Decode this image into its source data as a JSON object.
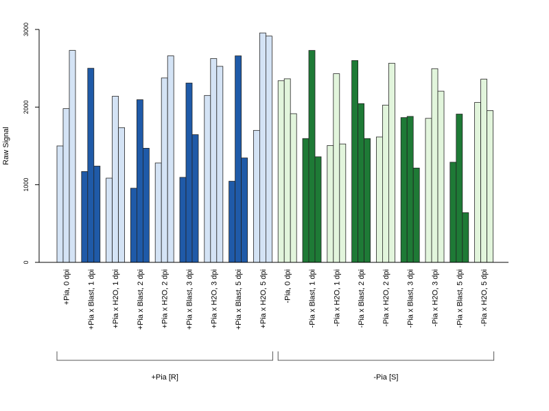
{
  "chart_data": {
    "type": "bar",
    "ylabel": "Raw Signal",
    "ylim": [
      0,
      3000
    ],
    "yticks": [
      "0",
      "1000",
      "2000",
      "3000"
    ],
    "categories": [
      "+Pia, 0 dpi",
      "+Pia x Blast, 1 dpi",
      "+Pia x H2O, 1 dpi",
      "+Pia x Blast, 2 dpi",
      "+Pia x H2O, 2 dpi",
      "+Pia x Blast, 3 dpi",
      "+Pia x H2O, 3 dpi",
      "+Pia x Blast, 5 dpi",
      "+Pia x H2O, 5 dpi",
      "-Pia, 0 dpi",
      "-Pia x Blast, 1 dpi",
      "-Pia x H2O, 1 dpi",
      "-Pia x Blast, 2 dpi",
      "-Pia x H2O, 2 dpi",
      "-Pia x Blast, 3 dpi",
      "-Pia x H2O, 3 dpi",
      "-Pia x Blast, 5 dpi",
      "-Pia x H2O, 5 dpi"
    ],
    "values": [
      [
        1500,
        1980,
        2730
      ],
      [
        1170,
        2500,
        1240
      ],
      [
        1085,
        2140,
        1735
      ],
      [
        955,
        2095,
        1470
      ],
      [
        1280,
        2375,
        2660
      ],
      [
        1095,
        2310,
        1645
      ],
      [
        2150,
        2625,
        2525
      ],
      [
        1045,
        2660,
        1345
      ],
      [
        1700,
        2955,
        2915
      ],
      [
        2340,
        2365,
        1915
      ],
      [
        1595,
        2730,
        1360
      ],
      [
        1505,
        2430,
        1525
      ],
      [
        2600,
        2045,
        1595
      ],
      [
        1615,
        2025,
        2565
      ],
      [
        1865,
        1880,
        1215
      ],
      [
        1855,
        2495,
        2205
      ],
      [
        1290,
        1910,
        640
      ],
      [
        2060,
        2360,
        1955
      ]
    ],
    "bar_colors": [
      "#d4e3f5",
      "#1f5aa8",
      "#d4e3f5",
      "#1f5aa8",
      "#d4e3f5",
      "#1f5aa8",
      "#d4e3f5",
      "#1f5aa8",
      "#d4e3f5",
      "#e2f5dc",
      "#1e7a36",
      "#e2f5dc",
      "#1e7a36",
      "#e2f5dc",
      "#1e7a36",
      "#e2f5dc",
      "#1e7a36",
      "#e2f5dc"
    ],
    "groups": [
      {
        "label": "+Pia [R]",
        "from": 0,
        "to": 8
      },
      {
        "label": "-Pia [S]",
        "from": 9,
        "to": 17
      }
    ]
  }
}
